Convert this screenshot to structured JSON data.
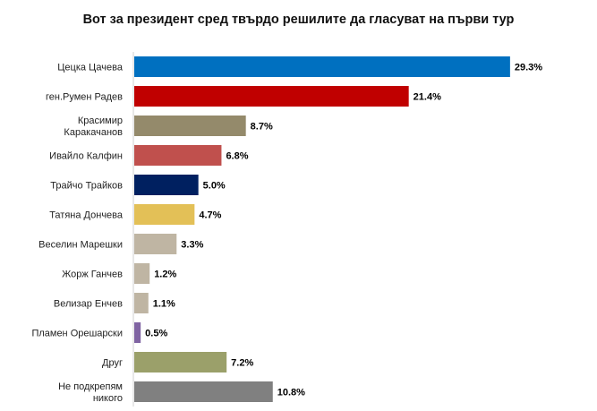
{
  "chart_data": {
    "type": "bar",
    "orientation": "horizontal",
    "title": "Вот за президент сред твърдо решилите да гласуват на първи тур",
    "categories": [
      "Цецка Цачева",
      "ген.Румен Радев",
      "Красимир Каракачанов",
      "Ивайло Калфин",
      "Трайчо Трайков",
      "Татяна Дончева",
      "Веселин Марешки",
      "Жорж Ганчев",
      "Велизар Енчев",
      "Пламен Орешарски",
      "Друг",
      "Не подкрепям никого"
    ],
    "category_lines": [
      [
        "Цецка Цачева"
      ],
      [
        "ген.Румен Радев"
      ],
      [
        "Красимир",
        "Каракачанов"
      ],
      [
        "Ивайло Калфин"
      ],
      [
        "Трайчо Трайков"
      ],
      [
        "Татяна Дончева"
      ],
      [
        "Веселин Марешки"
      ],
      [
        "Жорж Ганчев"
      ],
      [
        "Велизар Енчев"
      ],
      [
        "Пламен Орешарски"
      ],
      [
        "Друг"
      ],
      [
        "Не подкрепям",
        "никого"
      ]
    ],
    "values": [
      29.3,
      21.4,
      8.7,
      6.8,
      5.0,
      4.7,
      3.3,
      1.2,
      1.1,
      0.5,
      7.2,
      10.8
    ],
    "value_labels": [
      "29.3%",
      "21.4%",
      "8.7%",
      "6.8%",
      "5.0%",
      "4.7%",
      "3.3%",
      "1.2%",
      "1.1%",
      "0.5%",
      "7.2%",
      "10.8%"
    ],
    "colors": [
      "#0070C0",
      "#C00000",
      "#948A6B",
      "#C0504D",
      "#002060",
      "#E3C057",
      "#BFB5A3",
      "#BFB5A3",
      "#BFB5A3",
      "#8064A2",
      "#9BA06A",
      "#808080"
    ],
    "xlim": [
      0,
      31.5
    ],
    "grid": false,
    "legend": "none"
  }
}
